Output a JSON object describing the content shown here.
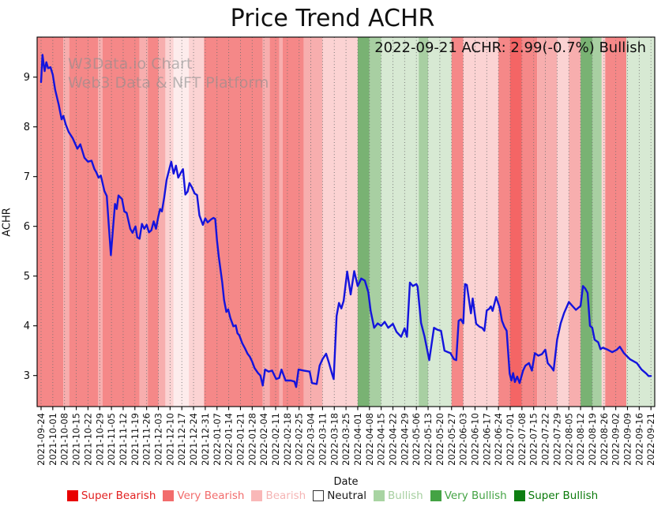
{
  "title": "Price Trend ACHR",
  "annotation": "2022-09-21 ACHR: 2.99(-0.7%) Bullish",
  "watermark": {
    "line1": "W3Data.io Chart",
    "line2": "Web3 Data & NFT Platform"
  },
  "legend": {
    "items": [
      {
        "label": "Super Bearish",
        "swatch": "#e80000",
        "text_color": "#e22020",
        "border": "#e80000"
      },
      {
        "label": "Very Bearish",
        "swatch": "#f26c6c",
        "text_color": "#f26c6c",
        "border": "#f26c6c"
      },
      {
        "label": "Bearish",
        "swatch": "#f9b8b8",
        "text_color": "#f5b4b4",
        "border": "#f9b8b8"
      },
      {
        "label": "Neutral",
        "swatch": "#ffffff",
        "text_color": "#1a1a1a",
        "border": "#333333"
      },
      {
        "label": "Bullish",
        "swatch": "#a8d4a2",
        "text_color": "#a6cfa0",
        "border": "#a8d4a2"
      },
      {
        "label": "Very Bullish",
        "swatch": "#44a344",
        "text_color": "#44a344",
        "border": "#44a344"
      },
      {
        "label": "Super Bullish",
        "swatch": "#0e7e12",
        "text_color": "#0a7a0a",
        "border": "#0e7e12"
      }
    ]
  },
  "chart_data": {
    "type": "line",
    "title": "Price Trend ACHR",
    "xlabel": "Date",
    "ylabel": "ACHR",
    "ylim": [
      2.38,
      9.8
    ],
    "yticks": [
      3,
      4,
      5,
      6,
      7,
      8,
      9
    ],
    "grid": "dotted-vertical-weekly",
    "line_color": "#1414dd",
    "x_tick_labels": [
      "2021-09-24",
      "2021-10-01",
      "2021-10-08",
      "2021-10-15",
      "2021-10-22",
      "2021-10-29",
      "2021-11-05",
      "2021-11-12",
      "2021-11-19",
      "2021-11-26",
      "2021-12-03",
      "2021-12-10",
      "2021-12-17",
      "2021-12-24",
      "2021-12-31",
      "2022-01-07",
      "2022-01-14",
      "2022-01-21",
      "2022-01-28",
      "2022-02-04",
      "2022-02-11",
      "2022-02-18",
      "2022-02-25",
      "2022-03-04",
      "2022-03-11",
      "2022-03-18",
      "2022-03-25",
      "2022-04-01",
      "2022-04-08",
      "2022-04-15",
      "2022-04-22",
      "2022-04-29",
      "2022-05-06",
      "2022-05-13",
      "2022-05-20",
      "2022-05-27",
      "2022-06-03",
      "2022-06-10",
      "2022-06-17",
      "2022-06-24",
      "2022-07-01",
      "2022-07-08",
      "2022-07-15",
      "2022-07-22",
      "2022-07-29",
      "2022-08-05",
      "2022-08-12",
      "2022-08-19",
      "2022-08-26",
      "2022-09-02",
      "2022-09-09",
      "2022-09-16",
      "2022-09-21"
    ],
    "band_colors": {
      "very-bearish-strong": "#f46565",
      "very-bearish": "#f58888",
      "bearish": "#f7aeae",
      "bearish-pale": "#fbd3d3",
      "neutral": "#fdecec",
      "bullish": "#d7e9d3",
      "bullish-medium": "#a8cfa2",
      "very-bullish": "#79b273"
    },
    "background_bands": [
      [
        -0.35,
        1.9,
        "very-bearish"
      ],
      [
        1.9,
        2.4,
        "bearish"
      ],
      [
        2.4,
        4.85,
        "very-bearish"
      ],
      [
        4.85,
        5.25,
        "bearish"
      ],
      [
        5.25,
        8.4,
        "very-bearish"
      ],
      [
        8.4,
        9.1,
        "bearish"
      ],
      [
        9.1,
        10.0,
        "very-bearish"
      ],
      [
        10.0,
        10.6,
        "bearish"
      ],
      [
        10.6,
        11.3,
        "bearish-pale"
      ],
      [
        11.3,
        12.6,
        "neutral"
      ],
      [
        12.6,
        13.9,
        "bearish-pale"
      ],
      [
        13.9,
        18.9,
        "very-bearish"
      ],
      [
        18.9,
        19.5,
        "bearish"
      ],
      [
        19.5,
        20.3,
        "very-bearish"
      ],
      [
        20.3,
        20.6,
        "bearish"
      ],
      [
        20.6,
        22.4,
        "very-bearish"
      ],
      [
        22.4,
        24.0,
        "bearish"
      ],
      [
        24.0,
        27.0,
        "bearish-pale"
      ],
      [
        27.0,
        28.0,
        "very-bullish"
      ],
      [
        28.0,
        29.0,
        "bullish-medium"
      ],
      [
        29.0,
        32.2,
        "bullish"
      ],
      [
        32.2,
        33.0,
        "bullish-medium"
      ],
      [
        33.0,
        35.0,
        "bullish"
      ],
      [
        35.0,
        36.0,
        "very-bearish"
      ],
      [
        36.0,
        39.0,
        "bearish-pale"
      ],
      [
        39.0,
        40.0,
        "very-bearish"
      ],
      [
        40.0,
        41.0,
        "very-bearish-strong"
      ],
      [
        41.0,
        42.3,
        "very-bearish"
      ],
      [
        42.3,
        44.0,
        "bearish"
      ],
      [
        44.0,
        45.0,
        "bearish-pale"
      ],
      [
        45.0,
        46.0,
        "bearish"
      ],
      [
        46.0,
        47.0,
        "very-bullish"
      ],
      [
        47.0,
        47.8,
        "bullish-medium"
      ],
      [
        47.8,
        48.1,
        "bearish-pale"
      ],
      [
        48.1,
        49.9,
        "very-bearish"
      ],
      [
        49.9,
        52.35,
        "bullish"
      ]
    ],
    "series": [
      {
        "name": "ACHR",
        "points": [
          [
            0,
            8.9
          ],
          [
            0.12,
            9.45
          ],
          [
            0.3,
            9.12
          ],
          [
            0.45,
            9.3
          ],
          [
            0.6,
            9.18
          ],
          [
            0.8,
            9.2
          ],
          [
            1,
            9.05
          ],
          [
            1.2,
            8.75
          ],
          [
            1.5,
            8.45
          ],
          [
            1.75,
            8.15
          ],
          [
            1.9,
            8.22
          ],
          [
            2.1,
            8.05
          ],
          [
            2.35,
            7.9
          ],
          [
            2.7,
            7.77
          ],
          [
            3.1,
            7.56
          ],
          [
            3.35,
            7.65
          ],
          [
            3.7,
            7.38
          ],
          [
            4,
            7.3
          ],
          [
            4.3,
            7.32
          ],
          [
            4.55,
            7.15
          ],
          [
            4.7,
            7.09
          ],
          [
            4.9,
            6.98
          ],
          [
            5.1,
            7.02
          ],
          [
            5.4,
            6.71
          ],
          [
            5.6,
            6.61
          ],
          [
            5.75,
            6.1
          ],
          [
            5.95,
            5.42
          ],
          [
            6.15,
            6.0
          ],
          [
            6.3,
            6.45
          ],
          [
            6.45,
            6.35
          ],
          [
            6.6,
            6.62
          ],
          [
            6.9,
            6.55
          ],
          [
            7.1,
            6.3
          ],
          [
            7.3,
            6.27
          ],
          [
            7.6,
            5.95
          ],
          [
            7.8,
            5.87
          ],
          [
            8.05,
            6.0
          ],
          [
            8.2,
            5.78
          ],
          [
            8.4,
            5.75
          ],
          [
            8.6,
            6.05
          ],
          [
            8.8,
            5.95
          ],
          [
            9,
            6.03
          ],
          [
            9.2,
            5.88
          ],
          [
            9.4,
            5.92
          ],
          [
            9.6,
            6.1
          ],
          [
            9.8,
            5.95
          ],
          [
            10,
            6.2
          ],
          [
            10.15,
            6.35
          ],
          [
            10.3,
            6.3
          ],
          [
            10.5,
            6.58
          ],
          [
            10.7,
            6.93
          ],
          [
            10.85,
            7.07
          ],
          [
            11.1,
            7.3
          ],
          [
            11.3,
            7.06
          ],
          [
            11.5,
            7.22
          ],
          [
            11.7,
            6.98
          ],
          [
            11.9,
            7.07
          ],
          [
            12.1,
            7.15
          ],
          [
            12.3,
            6.64
          ],
          [
            12.5,
            6.7
          ],
          [
            12.65,
            6.87
          ],
          [
            12.85,
            6.79
          ],
          [
            13.1,
            6.66
          ],
          [
            13.3,
            6.63
          ],
          [
            13.5,
            6.22
          ],
          [
            13.8,
            6.03
          ],
          [
            14,
            6.16
          ],
          [
            14.2,
            6.08
          ],
          [
            14.5,
            6.14
          ],
          [
            14.7,
            6.17
          ],
          [
            14.85,
            6.15
          ],
          [
            15,
            5.71
          ],
          [
            15.15,
            5.39
          ],
          [
            15.3,
            5.13
          ],
          [
            15.45,
            4.87
          ],
          [
            15.6,
            4.52
          ],
          [
            15.8,
            4.28
          ],
          [
            15.95,
            4.33
          ],
          [
            16.15,
            4.15
          ],
          [
            16.4,
            3.99
          ],
          [
            16.6,
            4.01
          ],
          [
            16.75,
            3.85
          ],
          [
            16.9,
            3.81
          ],
          [
            17.15,
            3.65
          ],
          [
            17.4,
            3.54
          ],
          [
            17.6,
            3.44
          ],
          [
            17.8,
            3.38
          ],
          [
            18,
            3.28
          ],
          [
            18.2,
            3.15
          ],
          [
            18.5,
            3.05
          ],
          [
            18.7,
            3.0
          ],
          [
            18.9,
            2.8
          ],
          [
            19.1,
            3.12
          ],
          [
            19.4,
            3.08
          ],
          [
            19.7,
            3.1
          ],
          [
            20.05,
            2.93
          ],
          [
            20.3,
            2.95
          ],
          [
            20.5,
            3.12
          ],
          [
            20.85,
            2.9
          ],
          [
            21.3,
            2.9
          ],
          [
            21.6,
            2.88
          ],
          [
            21.75,
            2.77
          ],
          [
            21.95,
            3.12
          ],
          [
            22.4,
            3.1
          ],
          [
            22.9,
            3.08
          ],
          [
            23.1,
            2.85
          ],
          [
            23.5,
            2.83
          ],
          [
            23.75,
            3.2
          ],
          [
            24,
            3.33
          ],
          [
            24.3,
            3.44
          ],
          [
            24.55,
            3.25
          ],
          [
            24.8,
            3.04
          ],
          [
            24.95,
            2.93
          ],
          [
            25.2,
            4.2
          ],
          [
            25.4,
            4.46
          ],
          [
            25.6,
            4.35
          ],
          [
            25.8,
            4.5
          ],
          [
            26.1,
            5.09
          ],
          [
            26.4,
            4.63
          ],
          [
            26.7,
            5.1
          ],
          [
            27,
            4.8
          ],
          [
            27.3,
            4.95
          ],
          [
            27.6,
            4.91
          ],
          [
            27.9,
            4.68
          ],
          [
            28.1,
            4.3
          ],
          [
            28.4,
            3.96
          ],
          [
            28.7,
            4.05
          ],
          [
            29,
            4.0
          ],
          [
            29.3,
            4.08
          ],
          [
            29.6,
            3.96
          ],
          [
            30,
            4.04
          ],
          [
            30.3,
            3.88
          ],
          [
            30.7,
            3.78
          ],
          [
            31,
            3.95
          ],
          [
            31.2,
            3.78
          ],
          [
            31.45,
            4.87
          ],
          [
            31.7,
            4.8
          ],
          [
            32,
            4.84
          ],
          [
            32.1,
            4.79
          ],
          [
            32.4,
            4.06
          ],
          [
            32.7,
            3.78
          ],
          [
            33.1,
            3.31
          ],
          [
            33.5,
            3.96
          ],
          [
            33.8,
            3.92
          ],
          [
            34.1,
            3.9
          ],
          [
            34.4,
            3.5
          ],
          [
            34.7,
            3.47
          ],
          [
            34.9,
            3.45
          ],
          [
            35.2,
            3.33
          ],
          [
            35.4,
            3.31
          ],
          [
            35.6,
            4.1
          ],
          [
            35.8,
            4.13
          ],
          [
            36,
            4.05
          ],
          [
            36.15,
            4.84
          ],
          [
            36.3,
            4.82
          ],
          [
            36.45,
            4.58
          ],
          [
            36.65,
            4.25
          ],
          [
            36.8,
            4.55
          ],
          [
            37.1,
            4.04
          ],
          [
            37.4,
            3.98
          ],
          [
            37.6,
            3.96
          ],
          [
            37.8,
            3.9
          ],
          [
            38,
            4.31
          ],
          [
            38.2,
            4.34
          ],
          [
            38.35,
            4.39
          ],
          [
            38.5,
            4.3
          ],
          [
            38.8,
            4.58
          ],
          [
            39.1,
            4.37
          ],
          [
            39.3,
            4.1
          ],
          [
            39.5,
            3.98
          ],
          [
            39.7,
            3.9
          ],
          [
            39.95,
            3.04
          ],
          [
            40.1,
            2.9
          ],
          [
            40.25,
            3.05
          ],
          [
            40.4,
            2.87
          ],
          [
            40.6,
            2.98
          ],
          [
            40.8,
            2.85
          ],
          [
            41.1,
            3.1
          ],
          [
            41.3,
            3.2
          ],
          [
            41.6,
            3.25
          ],
          [
            41.85,
            3.1
          ],
          [
            42.1,
            3.45
          ],
          [
            42.4,
            3.4
          ],
          [
            42.7,
            3.43
          ],
          [
            43,
            3.52
          ],
          [
            43.2,
            3.25
          ],
          [
            43.5,
            3.17
          ],
          [
            43.7,
            3.1
          ],
          [
            44,
            3.72
          ],
          [
            44.3,
            4.05
          ],
          [
            44.6,
            4.26
          ],
          [
            45,
            4.48
          ],
          [
            45.3,
            4.4
          ],
          [
            45.6,
            4.32
          ],
          [
            46,
            4.4
          ],
          [
            46.2,
            4.8
          ],
          [
            46.4,
            4.75
          ],
          [
            46.6,
            4.66
          ],
          [
            46.8,
            4.0
          ],
          [
            47,
            3.96
          ],
          [
            47.2,
            3.72
          ],
          [
            47.5,
            3.67
          ],
          [
            47.7,
            3.53
          ],
          [
            47.9,
            3.56
          ],
          [
            48.3,
            3.52
          ],
          [
            48.7,
            3.47
          ],
          [
            49.1,
            3.52
          ],
          [
            49.35,
            3.58
          ],
          [
            49.7,
            3.45
          ],
          [
            50.2,
            3.33
          ],
          [
            50.8,
            3.25
          ],
          [
            51.2,
            3.12
          ],
          [
            51.6,
            3.04
          ],
          [
            51.8,
            2.99
          ],
          [
            52,
            2.99
          ]
        ]
      }
    ]
  }
}
